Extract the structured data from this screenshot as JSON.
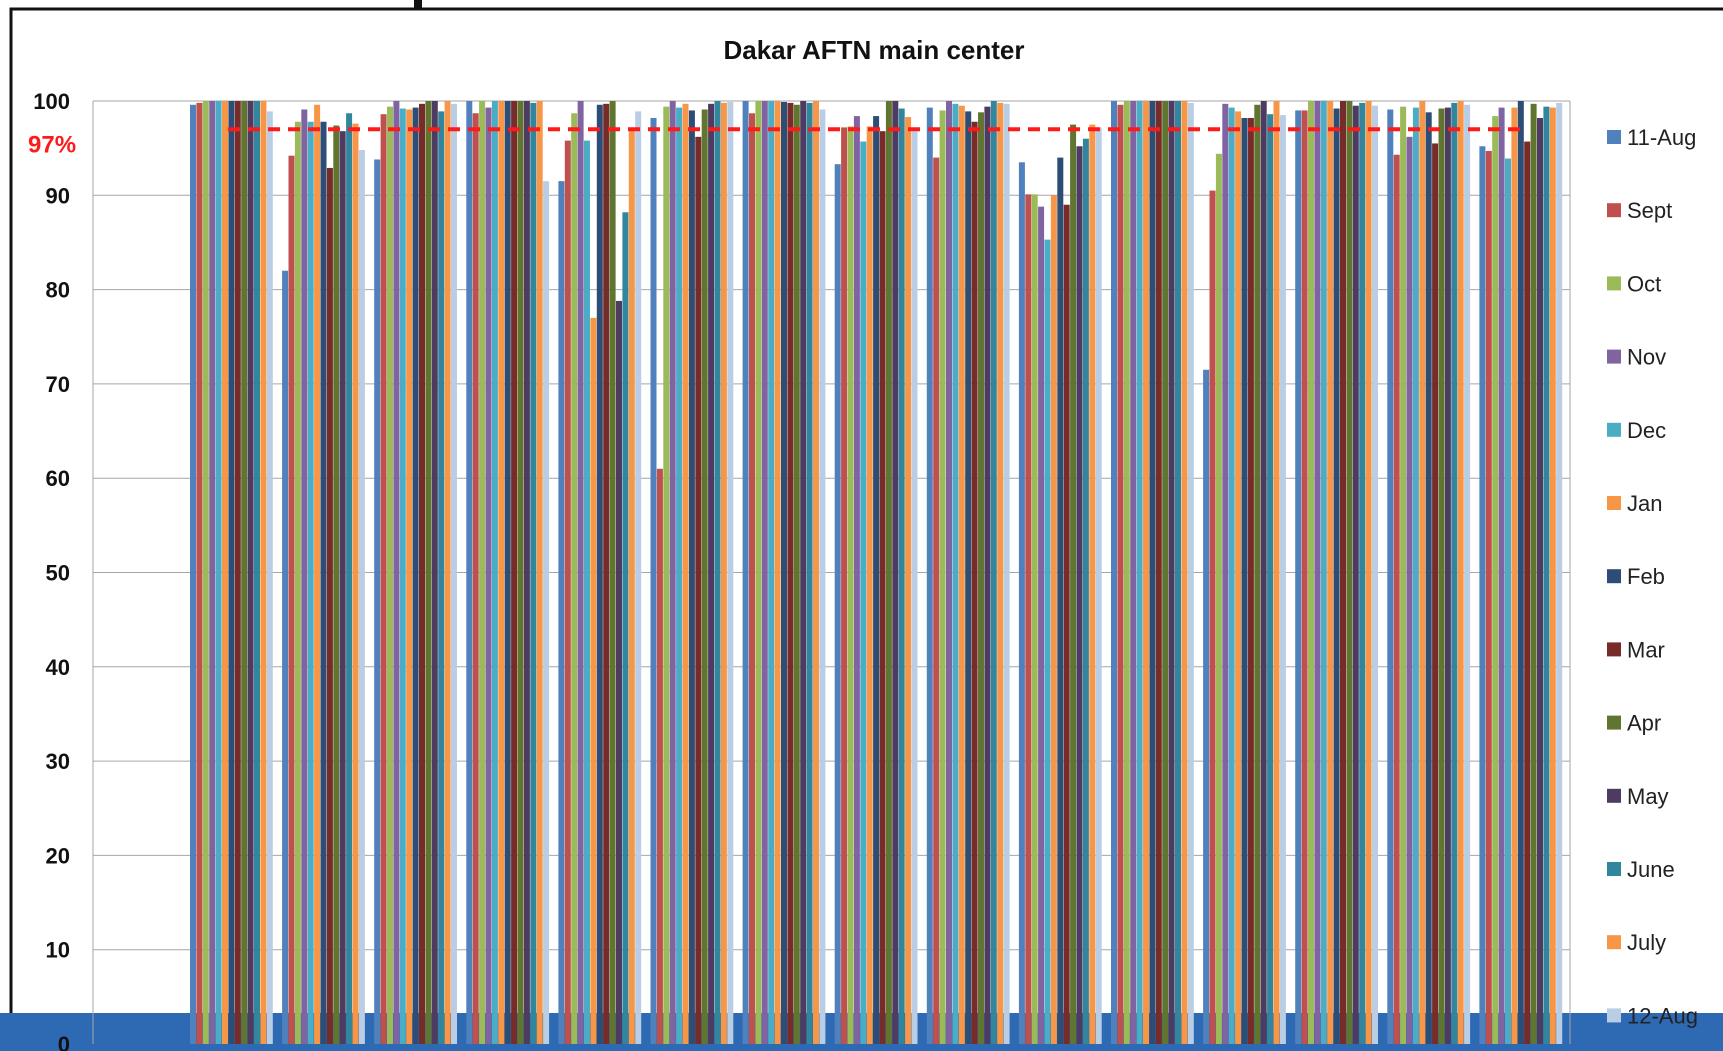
{
  "chart_data": {
    "type": "bar",
    "title": "Dakar AFTN main center",
    "xlabel": "",
    "ylabel": "",
    "ylim": [
      0,
      100
    ],
    "yticks": [
      "0",
      "10",
      "20",
      "30",
      "40",
      "50",
      "60",
      "70",
      "80",
      "90",
      "100"
    ],
    "grid": true,
    "legend_position": "right",
    "categories": [
      "",
      "",
      "",
      "",
      "",
      "",
      "",
      "",
      "",
      "",
      "",
      "",
      "",
      "",
      ""
    ],
    "reference_line": {
      "value": 97,
      "label": "97%",
      "color": "#ff1a1a"
    },
    "series": [
      {
        "name": "11-Aug",
        "color": "#4f81bd",
        "values": [
          99.6,
          82,
          93.8,
          100,
          91.5,
          98.2,
          100,
          93.3,
          99.3,
          93.5,
          100,
          71.5,
          99,
          99.1,
          95.2
        ]
      },
      {
        "name": "Sept",
        "color": "#c0504d",
        "values": [
          99.8,
          94.2,
          98.6,
          98.7,
          95.8,
          61,
          98.7,
          97.2,
          94,
          90.1,
          99.6,
          90.5,
          99,
          94.3,
          94.7
        ]
      },
      {
        "name": "Oct",
        "color": "#9bbb59",
        "values": [
          100,
          97.8,
          99.4,
          100,
          98.7,
          99.4,
          100,
          97.3,
          99,
          90.1,
          100,
          94.4,
          100,
          99.4,
          98.4
        ]
      },
      {
        "name": "Nov",
        "color": "#8064a2",
        "values": [
          100,
          99.1,
          100,
          99.3,
          100,
          100,
          100,
          98.4,
          100,
          88.8,
          100,
          99.7,
          100,
          96.2,
          99.3
        ]
      },
      {
        "name": "Dec",
        "color": "#4bacc6",
        "values": [
          100,
          97.8,
          99.2,
          100,
          95.8,
          99.3,
          100,
          95.7,
          99.7,
          85.3,
          100,
          99.3,
          100,
          99.3,
          93.9
        ]
      },
      {
        "name": "Jan",
        "color": "#f79646",
        "values": [
          100,
          99.6,
          99.1,
          100,
          77,
          99.7,
          100,
          97.3,
          99.5,
          90,
          100,
          98.9,
          100,
          100,
          99.3
        ]
      },
      {
        "name": "Feb",
        "color": "#2c4d75",
        "values": [
          100,
          97.8,
          99.3,
          100,
          99.6,
          99,
          99.9,
          98.4,
          98.9,
          94,
          100,
          98.2,
          99.2,
          98.8,
          100
        ]
      },
      {
        "name": "Mar",
        "color": "#772c2a",
        "values": [
          100,
          92.9,
          99.7,
          100,
          99.7,
          96.2,
          99.8,
          96.8,
          97.8,
          89,
          100,
          98.2,
          100,
          95.5,
          95.7
        ]
      },
      {
        "name": "Apr",
        "color": "#5f7530",
        "values": [
          100,
          97.4,
          100,
          100,
          100,
          99.1,
          99.6,
          100,
          98.8,
          97.5,
          100,
          99.6,
          100,
          99.2,
          99.7
        ]
      },
      {
        "name": "May",
        "color": "#4d3b62",
        "values": [
          100,
          96.8,
          100,
          100,
          78.8,
          99.7,
          100,
          100,
          99.4,
          95.2,
          100,
          100,
          99.5,
          99.3,
          98.2
        ]
      },
      {
        "name": "June",
        "color": "#31859c",
        "values": [
          100,
          98.7,
          98.9,
          99.8,
          88.2,
          100,
          99.8,
          99.2,
          100,
          96,
          100,
          98.6,
          99.8,
          99.8,
          99.4
        ]
      },
      {
        "name": "July",
        "color": "#f79646",
        "values": [
          100,
          97.6,
          100,
          100,
          97.2,
          99.8,
          100,
          98.3,
          99.8,
          97.5,
          100,
          100,
          100,
          100,
          99.3
        ]
      },
      {
        "name": "12-Aug",
        "color": "#b9cde5",
        "values": [
          98.9,
          94.8,
          99.7,
          91.5,
          98.9,
          99.9,
          99.1,
          96.8,
          99.7,
          97.2,
          99.8,
          98.5,
          99.5,
          99.6,
          99.8
        ]
      }
    ]
  },
  "footer_band_color": "#2e6ab3"
}
